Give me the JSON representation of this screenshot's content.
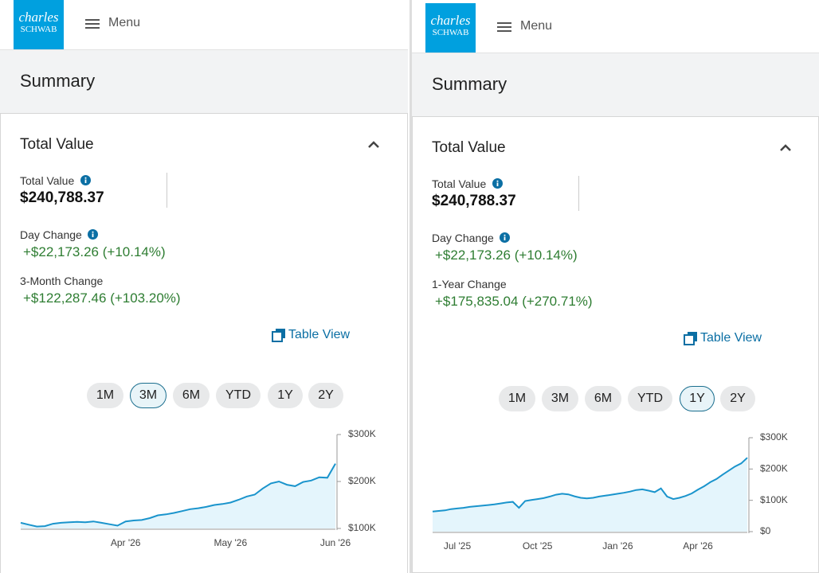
{
  "panels": [
    {
      "logo": [
        "charles",
        "SCHWAB"
      ],
      "menu": "Menu",
      "page_title": "Summary",
      "card": {
        "title": "Total Value",
        "total_label": "Total Value",
        "total_value": "$240,788.37",
        "day_change_label": "Day Change",
        "day_change_value": "+$22,173.26 (+10.14%)",
        "period_change_label": "3-Month Change",
        "period_change_value": "+$122,287.46 (+103.20%)",
        "table_view": "Table View",
        "ranges": [
          "1M",
          "3M",
          "6M",
          "YTD",
          "1Y",
          "2Y"
        ],
        "selected_range": 1
      }
    },
    {
      "logo": [
        "charles",
        "SCHWAB"
      ],
      "menu": "Menu",
      "page_title": "Summary",
      "card": {
        "title": "Total Value",
        "total_label": "Total Value",
        "total_value": "$240,788.37",
        "day_change_label": "Day Change",
        "day_change_value": "+$22,173.26 (+10.14%)",
        "period_change_label": "1-Year Change",
        "period_change_value": "+$175,835.04 (+270.71%)",
        "table_view": "Table View",
        "ranges": [
          "1M",
          "3M",
          "6M",
          "YTD",
          "1Y",
          "2Y"
        ],
        "selected_range": 4
      }
    }
  ],
  "chart_data": [
    {
      "type": "line",
      "color": "#1a94cc",
      "fill_color": "#e4f5fc",
      "values": [
        112000,
        108000,
        104000,
        105000,
        110000,
        112000,
        113000,
        114000,
        113000,
        115000,
        112000,
        109000,
        106000,
        115000,
        117000,
        118000,
        122000,
        128000,
        130000,
        133000,
        137000,
        141000,
        143000,
        146000,
        150000,
        152000,
        155000,
        161000,
        168000,
        172000,
        185000,
        196000,
        200000,
        193000,
        190000,
        199000,
        202000,
        209000,
        208000,
        238000
      ],
      "xlim": [
        0,
        39
      ],
      "xticks": [
        {
          "value": 13,
          "label": "Apr '26"
        },
        {
          "value": 26,
          "label": "May '26"
        },
        {
          "value": 39,
          "label": "Jun '26"
        }
      ],
      "ylim": [
        100000,
        300000
      ],
      "yticks": [
        {
          "value": 100000,
          "label": "$100K"
        },
        {
          "value": 200000,
          "label": "$200K"
        },
        {
          "value": 300000,
          "label": "$300K"
        }
      ]
    },
    {
      "type": "line",
      "color": "#1a94cc",
      "fill_color": "#e4f5fc",
      "values": [
        64000,
        66000,
        68000,
        72000,
        74000,
        76000,
        79000,
        81000,
        83000,
        85000,
        87000,
        90000,
        93000,
        95000,
        76000,
        98000,
        101000,
        104000,
        107000,
        112000,
        118000,
        121000,
        119000,
        113000,
        108000,
        106000,
        108000,
        112000,
        115000,
        118000,
        121000,
        124000,
        128000,
        133000,
        135000,
        131000,
        126000,
        138000,
        112000,
        104000,
        108000,
        114000,
        122000,
        134000,
        145000,
        158000,
        168000,
        182000,
        195000,
        208000,
        218000,
        236000
      ],
      "xlim": [
        0,
        51
      ],
      "xticks": [
        {
          "value": 4,
          "label": "Jul '25"
        },
        {
          "value": 17,
          "label": "Oct '25"
        },
        {
          "value": 30,
          "label": "Jan '26"
        },
        {
          "value": 43,
          "label": "Apr '26"
        }
      ],
      "ylim": [
        0,
        300000
      ],
      "yticks": [
        {
          "value": 0,
          "label": "$0"
        },
        {
          "value": 100000,
          "label": "$100K"
        },
        {
          "value": 200000,
          "label": "$200K"
        },
        {
          "value": 300000,
          "label": "$300K"
        }
      ]
    }
  ]
}
